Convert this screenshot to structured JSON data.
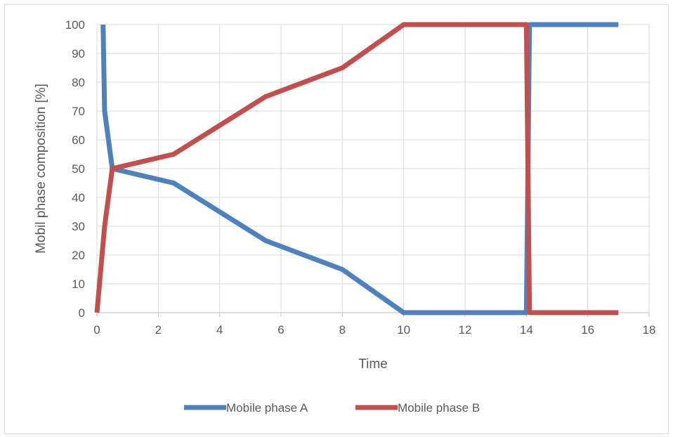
{
  "chart_data": {
    "type": "line",
    "title": "",
    "xlabel": "Time",
    "ylabel": "Mobil phase composition [%]",
    "xlim": [
      0,
      18
    ],
    "ylim": [
      0,
      100
    ],
    "xticks": [
      0,
      2,
      4,
      6,
      8,
      10,
      12,
      14,
      16,
      18
    ],
    "yticks": [
      0,
      10,
      20,
      30,
      40,
      50,
      60,
      70,
      80,
      90,
      100
    ],
    "grid": true,
    "legend_position": "bottom",
    "series": [
      {
        "name": "Mobile phase A",
        "color": "#4f81bd",
        "x": [
          0.2,
          0.25,
          0.5,
          2.5,
          5.5,
          8,
          10,
          14,
          14.1,
          17
        ],
        "y": [
          100,
          70,
          50,
          45,
          25,
          15,
          0,
          0,
          100,
          100
        ]
      },
      {
        "name": "Mobile phase B",
        "color": "#c0504d",
        "x": [
          0,
          0.25,
          0.5,
          2.5,
          5.5,
          8,
          10,
          14,
          14.1,
          17
        ],
        "y": [
          0,
          30,
          50,
          55,
          75,
          85,
          100,
          100,
          0,
          0
        ]
      }
    ]
  }
}
